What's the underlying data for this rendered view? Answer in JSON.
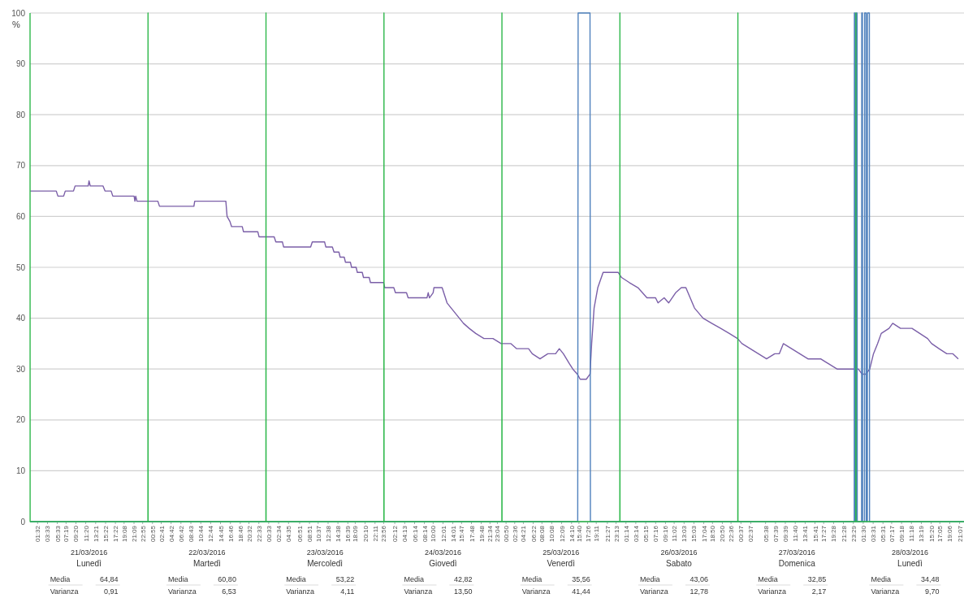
{
  "chart_data": {
    "type": "line",
    "ylabel": "%",
    "ylim": [
      0,
      100
    ],
    "yticks": [
      0,
      10,
      20,
      30,
      40,
      50,
      60,
      70,
      80,
      90,
      100
    ],
    "grid": "y",
    "xlim": [
      "2016-03-21T00:00",
      "2016-03-28T22:00"
    ],
    "xticks": [
      {
        "value": "2016-03-21T01:32",
        "label": "01:32"
      },
      {
        "value": "2016-03-21T03:33",
        "label": "03:33"
      },
      {
        "value": "2016-03-21T05:33",
        "label": "05:33"
      },
      {
        "value": "2016-03-21T07:19",
        "label": "07:19"
      },
      {
        "value": "2016-03-21T09:20",
        "label": "09:20"
      },
      {
        "value": "2016-03-21T11:20",
        "label": "11:20"
      },
      {
        "value": "2016-03-21T13:21",
        "label": "13:21"
      },
      {
        "value": "2016-03-21T15:22",
        "label": "15:22"
      },
      {
        "value": "2016-03-21T17:22",
        "label": "17:22"
      },
      {
        "value": "2016-03-21T19:08",
        "label": "19:08"
      },
      {
        "value": "2016-03-21T21:09",
        "label": "21:09"
      },
      {
        "value": "2016-03-21T22:55",
        "label": "22:55"
      },
      {
        "value": "2016-03-22T00:55",
        "label": "00:55"
      },
      {
        "value": "2016-03-22T02:41",
        "label": "02:41"
      },
      {
        "value": "2016-03-22T04:42",
        "label": "04:42"
      },
      {
        "value": "2016-03-22T06:42",
        "label": "06:42"
      },
      {
        "value": "2016-03-22T08:43",
        "label": "08:43"
      },
      {
        "value": "2016-03-22T10:44",
        "label": "10:44"
      },
      {
        "value": "2016-03-22T12:44",
        "label": "12:44"
      },
      {
        "value": "2016-03-22T14:45",
        "label": "14:45"
      },
      {
        "value": "2016-03-22T16:46",
        "label": "16:46"
      },
      {
        "value": "2016-03-22T18:46",
        "label": "18:46"
      },
      {
        "value": "2016-03-22T20:32",
        "label": "20:32"
      },
      {
        "value": "2016-03-22T22:33",
        "label": "22:33"
      },
      {
        "value": "2016-03-23T00:33",
        "label": "00:33"
      },
      {
        "value": "2016-03-23T02:34",
        "label": "02:34"
      },
      {
        "value": "2016-03-23T04:35",
        "label": "04:35"
      },
      {
        "value": "2016-03-23T06:51",
        "label": "06:51"
      },
      {
        "value": "2016-03-23T08:51",
        "label": "08:51"
      },
      {
        "value": "2016-03-23T10:37",
        "label": "10:37"
      },
      {
        "value": "2016-03-23T12:38",
        "label": "12:38"
      },
      {
        "value": "2016-03-23T14:38",
        "label": "14:38"
      },
      {
        "value": "2016-03-23T16:39",
        "label": "16:39"
      },
      {
        "value": "2016-03-23T18:09",
        "label": "18:09"
      },
      {
        "value": "2016-03-23T20:10",
        "label": "20:10"
      },
      {
        "value": "2016-03-23T22:11",
        "label": "22:11"
      },
      {
        "value": "2016-03-23T23:56",
        "label": "23:56"
      },
      {
        "value": "2016-03-24T02:12",
        "label": "02:12"
      },
      {
        "value": "2016-03-24T04:13",
        "label": "04:13"
      },
      {
        "value": "2016-03-24T06:14",
        "label": "06:14"
      },
      {
        "value": "2016-03-24T08:14",
        "label": "08:14"
      },
      {
        "value": "2016-03-24T10:00",
        "label": "10:00"
      },
      {
        "value": "2016-03-24T12:01",
        "label": "12:01"
      },
      {
        "value": "2016-03-24T14:01",
        "label": "14:01"
      },
      {
        "value": "2016-03-24T15:47",
        "label": "15:47"
      },
      {
        "value": "2016-03-24T17:48",
        "label": "17:48"
      },
      {
        "value": "2016-03-24T19:48",
        "label": "19:48"
      },
      {
        "value": "2016-03-24T21:34",
        "label": "21:34"
      },
      {
        "value": "2016-03-24T23:04",
        "label": "23:04"
      },
      {
        "value": "2016-03-25T00:50",
        "label": "00:50"
      },
      {
        "value": "2016-03-25T02:36",
        "label": "02:36"
      },
      {
        "value": "2016-03-25T04:21",
        "label": "04:21"
      },
      {
        "value": "2016-03-25T06:22",
        "label": "06:22"
      },
      {
        "value": "2016-03-25T08:08",
        "label": "08:08"
      },
      {
        "value": "2016-03-25T10:08",
        "label": "10:08"
      },
      {
        "value": "2016-03-25T12:09",
        "label": "12:09"
      },
      {
        "value": "2016-03-25T14:10",
        "label": "14:10"
      },
      {
        "value": "2016-03-25T15:40",
        "label": "15:40"
      },
      {
        "value": "2016-03-25T17:26",
        "label": "17:26"
      },
      {
        "value": "2016-03-25T19:11",
        "label": "19:11"
      },
      {
        "value": "2016-03-25T21:27",
        "label": "21:27"
      },
      {
        "value": "2016-03-25T23:13",
        "label": "23:13"
      },
      {
        "value": "2016-03-26T01:14",
        "label": "01:14"
      },
      {
        "value": "2016-03-26T03:14",
        "label": "03:14"
      },
      {
        "value": "2016-03-26T05:15",
        "label": "05:15"
      },
      {
        "value": "2016-03-26T07:16",
        "label": "07:16"
      },
      {
        "value": "2016-03-26T09:16",
        "label": "09:16"
      },
      {
        "value": "2016-03-26T11:02",
        "label": "11:02"
      },
      {
        "value": "2016-03-26T13:03",
        "label": "13:03"
      },
      {
        "value": "2016-03-26T15:03",
        "label": "15:03"
      },
      {
        "value": "2016-03-26T17:04",
        "label": "17:04"
      },
      {
        "value": "2016-03-26T18:50",
        "label": "18:50"
      },
      {
        "value": "2016-03-26T20:50",
        "label": "20:50"
      },
      {
        "value": "2016-03-26T22:36",
        "label": "22:36"
      },
      {
        "value": "2016-03-27T00:37",
        "label": "00:37"
      },
      {
        "value": "2016-03-27T02:37",
        "label": "02:37"
      },
      {
        "value": "2016-03-27T05:38",
        "label": "05:38"
      },
      {
        "value": "2016-03-27T07:39",
        "label": "07:39"
      },
      {
        "value": "2016-03-27T09:39",
        "label": "09:39"
      },
      {
        "value": "2016-03-27T11:40",
        "label": "11:40"
      },
      {
        "value": "2016-03-27T13:41",
        "label": "13:41"
      },
      {
        "value": "2016-03-27T15:41",
        "label": "15:41"
      },
      {
        "value": "2016-03-27T17:27",
        "label": "17:27"
      },
      {
        "value": "2016-03-27T19:28",
        "label": "19:28"
      },
      {
        "value": "2016-03-27T21:28",
        "label": "21:28"
      },
      {
        "value": "2016-03-27T23:29",
        "label": "23:29"
      },
      {
        "value": "2016-03-28T01:30",
        "label": "01:30"
      },
      {
        "value": "2016-03-28T03:31",
        "label": "03:31"
      },
      {
        "value": "2016-03-28T05:31",
        "label": "05:31"
      },
      {
        "value": "2016-03-28T07:17",
        "label": "07:17"
      },
      {
        "value": "2016-03-28T09:18",
        "label": "09:18"
      },
      {
        "value": "2016-03-28T11:18",
        "label": "11:18"
      },
      {
        "value": "2016-03-28T13:19",
        "label": "13:19"
      },
      {
        "value": "2016-03-28T15:20",
        "label": "15:20"
      },
      {
        "value": "2016-03-28T17:05",
        "label": "17:05"
      },
      {
        "value": "2016-03-28T19:06",
        "label": "19:06"
      },
      {
        "value": "2016-03-28T21:07",
        "label": "21:07"
      }
    ],
    "series": [
      {
        "color": "#7b5fa8",
        "x": [
          "2016-03-21T00:00",
          "2016-03-21T05:20",
          "2016-03-21T05:40",
          "2016-03-21T06:50",
          "2016-03-21T07:10",
          "2016-03-21T08:50",
          "2016-03-21T09:10",
          "2016-03-21T11:50",
          "2016-03-21T12:00",
          "2016-03-21T12:15",
          "2016-03-21T14:50",
          "2016-03-21T15:15",
          "2016-03-21T16:30",
          "2016-03-21T16:50",
          "2016-03-21T21:10",
          "2016-03-21T21:20",
          "2016-03-21T21:30",
          "2016-03-21T21:45",
          "2016-03-22T02:00",
          "2016-03-22T02:20",
          "2016-03-22T09:20",
          "2016-03-22T09:30",
          "2016-03-22T15:50",
          "2016-03-22T16:05",
          "2016-03-22T16:40",
          "2016-03-22T17:00",
          "2016-03-22T19:10",
          "2016-03-22T19:25",
          "2016-03-22T22:20",
          "2016-03-22T22:35",
          "2016-03-23T01:40",
          "2016-03-23T02:00",
          "2016-03-23T03:20",
          "2016-03-23T03:35",
          "2016-03-23T09:05",
          "2016-03-23T09:25",
          "2016-03-23T11:55",
          "2016-03-23T12:10",
          "2016-03-23T13:30",
          "2016-03-23T13:50",
          "2016-03-23T14:50",
          "2016-03-23T15:05",
          "2016-03-23T15:55",
          "2016-03-23T16:10",
          "2016-03-23T17:10",
          "2016-03-23T17:25",
          "2016-03-23T18:20",
          "2016-03-23T18:35",
          "2016-03-23T19:35",
          "2016-03-23T19:50",
          "2016-03-23T21:00",
          "2016-03-23T21:15",
          "2016-03-23T23:55",
          "2016-03-24T00:10",
          "2016-03-24T02:00",
          "2016-03-24T02:20",
          "2016-03-24T04:35",
          "2016-03-24T04:55",
          "2016-03-24T08:45",
          "2016-03-24T09:00",
          "2016-03-24T09:15",
          "2016-03-24T10:00",
          "2016-03-24T10:10",
          "2016-03-24T11:50",
          "2016-03-24T12:10",
          "2016-03-24T12:50",
          "2016-03-24T13:40",
          "2016-03-24T14:30",
          "2016-03-24T15:20",
          "2016-03-24T16:10",
          "2016-03-24T17:20",
          "2016-03-24T18:40",
          "2016-03-24T20:20",
          "2016-03-24T22:10",
          "2016-03-24T23:50",
          "2016-03-25T01:50",
          "2016-03-25T03:00",
          "2016-03-25T05:25",
          "2016-03-25T06:10",
          "2016-03-25T07:45",
          "2016-03-25T09:20",
          "2016-03-25T10:55",
          "2016-03-25T11:40",
          "2016-03-25T12:30",
          "2016-03-25T13:45",
          "2016-03-25T14:25",
          "2016-03-25T15:20",
          "2016-03-25T15:55",
          "2016-03-25T17:10",
          "2016-03-25T17:55",
          "2016-03-25T18:15",
          "2016-03-25T18:45",
          "2016-03-25T19:30",
          "2016-03-25T20:35",
          "2016-03-25T23:40",
          "2016-03-26T00:20",
          "2016-03-26T01:55",
          "2016-03-26T03:40",
          "2016-03-26T05:30",
          "2016-03-26T07:15",
          "2016-03-26T07:45",
          "2016-03-26T09:00",
          "2016-03-26T09:55",
          "2016-03-26T11:20",
          "2016-03-26T12:30",
          "2016-03-26T13:25",
          "2016-03-26T15:10",
          "2016-03-26T16:55",
          "2016-03-26T18:40",
          "2016-03-26T20:30",
          "2016-03-26T22:15",
          "2016-03-26T23:55",
          "2016-03-27T00:50",
          "2016-03-27T02:30",
          "2016-03-27T04:10",
          "2016-03-27T05:50",
          "2016-03-27T07:30",
          "2016-03-27T08:25",
          "2016-03-27T09:15",
          "2016-03-27T10:55",
          "2016-03-27T12:35",
          "2016-03-27T14:15",
          "2016-03-27T16:50",
          "2016-03-27T18:30",
          "2016-03-27T20:10",
          "2016-03-27T23:55",
          "2016-03-28T00:30",
          "2016-03-28T01:15",
          "2016-03-28T02:00",
          "2016-03-28T02:50",
          "2016-03-28T03:35",
          "2016-03-28T04:25",
          "2016-03-28T05:10",
          "2016-03-28T06:45",
          "2016-03-28T07:30",
          "2016-03-28T09:05",
          "2016-03-28T11:25",
          "2016-03-28T13:00",
          "2016-03-28T14:35",
          "2016-03-28T15:25",
          "2016-03-28T16:55",
          "2016-03-28T18:30",
          "2016-03-28T19:45",
          "2016-03-28T20:50"
        ],
        "values": [
          65,
          65,
          64,
          64,
          65,
          65,
          66,
          66,
          67,
          66,
          66,
          65,
          65,
          64,
          64,
          63,
          64,
          63,
          63,
          62,
          62,
          63,
          63,
          60,
          59,
          58,
          58,
          57,
          57,
          56,
          56,
          55,
          55,
          54,
          54,
          55,
          55,
          54,
          54,
          53,
          53,
          52,
          52,
          51,
          51,
          50,
          50,
          49,
          49,
          48,
          48,
          47,
          47,
          46,
          46,
          45,
          45,
          44,
          44,
          45,
          44,
          45,
          46,
          46,
          45,
          43,
          42,
          41,
          40,
          39,
          38,
          37,
          36,
          36,
          35,
          35,
          34,
          34,
          33,
          32,
          33,
          33,
          34,
          33,
          31,
          30,
          29,
          28,
          28,
          29,
          35,
          42,
          46,
          49,
          49,
          48,
          47,
          46,
          44,
          44,
          43,
          44,
          43,
          45,
          46,
          46,
          42,
          40,
          39,
          38,
          37,
          36,
          35,
          34,
          33,
          32,
          33,
          33,
          35,
          34,
          33,
          32,
          32,
          31,
          30,
          30,
          30,
          29,
          29,
          30,
          33,
          35,
          37,
          38,
          39,
          38,
          38,
          37,
          36,
          35,
          34,
          33,
          33,
          32
        ]
      },
      {
        "color": "#4f81bd",
        "x": [
          "2016-03-21T00:00",
          "2016-03-25T15:25",
          "2016-03-25T15:30",
          "2016-03-25T17:55",
          "2016-03-25T18:00",
          "2016-03-27T23:40",
          "2016-03-27T23:42",
          "2016-03-27T23:50",
          "2016-03-27T23:52",
          "2016-03-28T00:05",
          "2016-03-28T00:07",
          "2016-03-28T00:15",
          "2016-03-28T00:17",
          "2016-03-28T01:10",
          "2016-03-28T01:12",
          "2016-03-28T01:20",
          "2016-03-28T01:22",
          "2016-03-28T01:45",
          "2016-03-28T01:47",
          "2016-03-28T02:05",
          "2016-03-28T02:07",
          "2016-03-28T02:20",
          "2016-03-28T02:22",
          "2016-03-28T02:45",
          "2016-03-28T02:47",
          "2016-03-28T22:00"
        ],
        "values": [
          0,
          0,
          100,
          100,
          0,
          0,
          100,
          100,
          0,
          0,
          100,
          100,
          0,
          0,
          100,
          100,
          0,
          0,
          100,
          100,
          0,
          0,
          100,
          100,
          0,
          0
        ]
      },
      {
        "color": "#2eb84b",
        "x": [
          "2016-03-21T00:00",
          "2016-03-21T00:01",
          "2016-03-21T23:59",
          "2016-03-22T00:00",
          "2016-03-22T00:01",
          "2016-03-22T23:59",
          "2016-03-23T00:00",
          "2016-03-23T00:01",
          "2016-03-23T23:59",
          "2016-03-24T00:00",
          "2016-03-24T00:01",
          "2016-03-24T23:59",
          "2016-03-25T00:00",
          "2016-03-25T00:01",
          "2016-03-25T23:59",
          "2016-03-26T00:00",
          "2016-03-26T00:01",
          "2016-03-26T23:59",
          "2016-03-27T00:00",
          "2016-03-27T00:01",
          "2016-03-27T23:59",
          "2016-03-28T00:00",
          "2016-03-28T00:01",
          "2016-03-28T22:00"
        ],
        "values": [
          100,
          0,
          0,
          100,
          0,
          0,
          100,
          0,
          0,
          100,
          0,
          0,
          100,
          0,
          0,
          100,
          0,
          0,
          100,
          0,
          0,
          100,
          0,
          0
        ]
      }
    ],
    "annotations": [
      "21/03/2016",
      "Lunedì",
      "Media",
      "64,84",
      "Varianza",
      "0,91",
      "22/03/2016",
      "Martedì",
      "Media",
      "60,80",
      "Varianza",
      "6,53",
      "23/03/2016",
      "Mercoledì",
      "Media",
      "53,22",
      "Varianza",
      "4,11",
      "24/03/2016",
      "Giovedì",
      "Media",
      "42,82",
      "Varianza",
      "13,50",
      "25/03/2016",
      "Venerdì",
      "Media",
      "35,56",
      "Varianza",
      "41,44",
      "26/03/2016",
      "Sabato",
      "Media",
      "43,06",
      "Varianza",
      "12,78",
      "27/03/2016",
      "Domenica",
      "Media",
      "32,85",
      "Varianza",
      "2,17",
      "28/03/2016",
      "Lunedì",
      "Media",
      "34,48",
      "Varianza",
      "9,70"
    ]
  }
}
